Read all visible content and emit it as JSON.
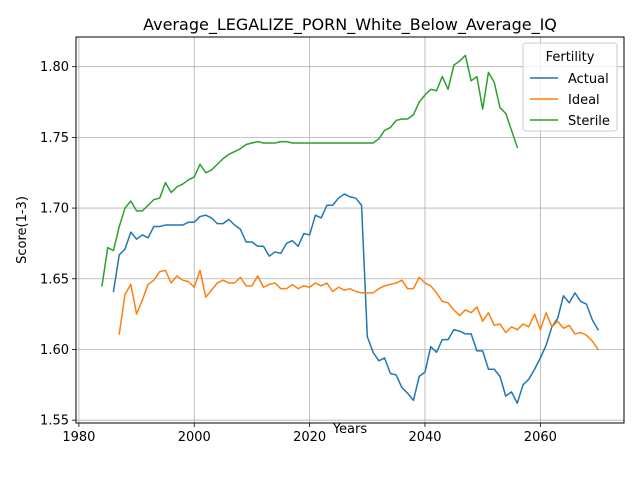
{
  "chart_data": {
    "type": "line",
    "title": "Average_LEGALIZE_PORN_White_Below_Average_IQ",
    "xlabel": "Years",
    "ylabel": "Score(1-3)",
    "xlim": [
      1979.5,
      2074.5
    ],
    "ylim": [
      1.548,
      1.821
    ],
    "xticks": [
      1980,
      2000,
      2020,
      2040,
      2060
    ],
    "xtick_labels": [
      "1980",
      "2000",
      "2020",
      "2040",
      "2060"
    ],
    "yticks": [
      1.55,
      1.6,
      1.65,
      1.7,
      1.75,
      1.8
    ],
    "ytick_labels": [
      "1.55",
      "1.60",
      "1.65",
      "1.70",
      "1.75",
      "1.80"
    ],
    "grid": true,
    "legend": {
      "title": "Fertility",
      "placement": "top-right"
    },
    "series": [
      {
        "name": "Actual",
        "color": "#1f77b4",
        "x": [
          1986,
          1987,
          1988,
          1989,
          1990,
          1991,
          1992,
          1993,
          1994,
          1995,
          1996,
          1997,
          1998,
          1999,
          2000,
          2001,
          2002,
          2003,
          2004,
          2005,
          2006,
          2007,
          2008,
          2009,
          2010,
          2011,
          2012,
          2013,
          2014,
          2015,
          2016,
          2017,
          2018,
          2019,
          2020,
          2021,
          2022,
          2023,
          2024,
          2025,
          2026,
          2027,
          2028,
          2029,
          2030,
          2031,
          2032,
          2033,
          2034,
          2035,
          2036,
          2037,
          2038,
          2039,
          2040,
          2041,
          2042,
          2043,
          2044,
          2045,
          2046,
          2047,
          2048,
          2049,
          2050,
          2051,
          2052,
          2053,
          2054,
          2055,
          2056,
          2057,
          2058,
          2059,
          2060,
          2061,
          2062,
          2063,
          2064,
          2065,
          2066,
          2067,
          2068,
          2069,
          2070
        ],
        "values": [
          1.641,
          1.667,
          1.671,
          1.683,
          1.678,
          1.681,
          1.679,
          1.687,
          1.687,
          1.688,
          1.688,
          1.688,
          1.688,
          1.69,
          1.69,
          1.694,
          1.695,
          1.693,
          1.689,
          1.689,
          1.692,
          1.688,
          1.685,
          1.676,
          1.676,
          1.673,
          1.673,
          1.666,
          1.669,
          1.668,
          1.675,
          1.677,
          1.673,
          1.682,
          1.681,
          1.695,
          1.693,
          1.702,
          1.702,
          1.707,
          1.71,
          1.708,
          1.707,
          1.702,
          1.609,
          1.598,
          1.592,
          1.594,
          1.583,
          1.582,
          1.573,
          1.569,
          1.564,
          1.581,
          1.584,
          1.602,
          1.598,
          1.607,
          1.607,
          1.614,
          1.613,
          1.611,
          1.611,
          1.599,
          1.599,
          1.586,
          1.586,
          1.581,
          1.567,
          1.57,
          1.562,
          1.575,
          1.579,
          1.586,
          1.594,
          1.603,
          1.616,
          1.622,
          1.638,
          1.633,
          1.64,
          1.634,
          1.632,
          1.621,
          1.614
        ]
      },
      {
        "name": "Ideal",
        "color": "#ff7f0e",
        "x": [
          1987,
          1988,
          1989,
          1990,
          1991,
          1992,
          1993,
          1994,
          1995,
          1996,
          1997,
          1998,
          1999,
          2000,
          2001,
          2002,
          2003,
          2004,
          2005,
          2006,
          2007,
          2008,
          2009,
          2010,
          2011,
          2012,
          2013,
          2014,
          2015,
          2016,
          2017,
          2018,
          2019,
          2020,
          2021,
          2022,
          2023,
          2024,
          2025,
          2026,
          2027,
          2028,
          2029,
          2030,
          2031,
          2032,
          2033,
          2034,
          2035,
          2036,
          2037,
          2038,
          2039,
          2040,
          2041,
          2042,
          2043,
          2044,
          2045,
          2046,
          2047,
          2048,
          2049,
          2050,
          2051,
          2052,
          2053,
          2054,
          2055,
          2056,
          2057,
          2058,
          2059,
          2060,
          2061,
          2062,
          2063,
          2064,
          2065,
          2066,
          2067,
          2068,
          2069,
          2070
        ],
        "values": [
          1.611,
          1.639,
          1.646,
          1.625,
          1.635,
          1.646,
          1.649,
          1.655,
          1.656,
          1.647,
          1.652,
          1.649,
          1.648,
          1.644,
          1.656,
          1.637,
          1.642,
          1.647,
          1.649,
          1.647,
          1.647,
          1.651,
          1.645,
          1.645,
          1.652,
          1.644,
          1.646,
          1.647,
          1.643,
          1.643,
          1.646,
          1.643,
          1.645,
          1.644,
          1.647,
          1.645,
          1.647,
          1.641,
          1.644,
          1.642,
          1.643,
          1.641,
          1.64,
          1.64,
          1.64,
          1.643,
          1.645,
          1.646,
          1.647,
          1.649,
          1.643,
          1.643,
          1.651,
          1.647,
          1.645,
          1.64,
          1.634,
          1.633,
          1.628,
          1.624,
          1.628,
          1.626,
          1.63,
          1.62,
          1.626,
          1.617,
          1.618,
          1.612,
          1.616,
          1.614,
          1.618,
          1.616,
          1.625,
          1.614,
          1.626,
          1.616,
          1.62,
          1.615,
          1.617,
          1.611,
          1.612,
          1.61,
          1.606,
          1.6
        ]
      },
      {
        "name": "Sterile",
        "color": "#2ca02c",
        "x": [
          1984,
          1985,
          1986,
          1987,
          1988,
          1989,
          1990,
          1991,
          1992,
          1993,
          1994,
          1995,
          1996,
          1997,
          1998,
          1999,
          2000,
          2001,
          2002,
          2003,
          2004,
          2005,
          2006,
          2007,
          2008,
          2009,
          2010,
          2011,
          2012,
          2013,
          2014,
          2015,
          2016,
          2017,
          2018,
          2019,
          2020,
          2021,
          2022,
          2023,
          2024,
          2025,
          2026,
          2027,
          2028,
          2029,
          2030,
          2031,
          2032,
          2033,
          2034,
          2035,
          2036,
          2037,
          2038,
          2039,
          2040,
          2041,
          2042,
          2043,
          2044,
          2045,
          2046,
          2047,
          2048,
          2049,
          2050,
          2051,
          2052,
          2053,
          2054,
          2055,
          2056
        ],
        "values": [
          1.645,
          1.672,
          1.67,
          1.687,
          1.7,
          1.705,
          1.698,
          1.698,
          1.702,
          1.706,
          1.707,
          1.718,
          1.711,
          1.715,
          1.717,
          1.72,
          1.722,
          1.731,
          1.725,
          1.727,
          1.731,
          1.735,
          1.738,
          1.74,
          1.742,
          1.745,
          1.746,
          1.747,
          1.746,
          1.746,
          1.746,
          1.747,
          1.747,
          1.746,
          1.746,
          1.746,
          1.746,
          1.746,
          1.746,
          1.746,
          1.746,
          1.746,
          1.746,
          1.746,
          1.746,
          1.746,
          1.746,
          1.746,
          1.749,
          1.755,
          1.757,
          1.762,
          1.763,
          1.763,
          1.766,
          1.775,
          1.78,
          1.784,
          1.783,
          1.793,
          1.784,
          1.801,
          1.804,
          1.808,
          1.79,
          1.793,
          1.77,
          1.796,
          1.789,
          1.771,
          1.767,
          1.755,
          1.743
        ]
      }
    ]
  }
}
